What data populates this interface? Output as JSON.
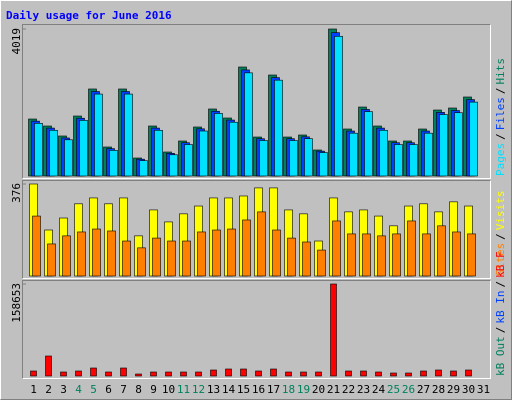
{
  "title": "Daily usage for June 2016",
  "categories": [
    "1",
    "2",
    "3",
    "4",
    "5",
    "6",
    "7",
    "8",
    "9",
    "10",
    "11",
    "12",
    "13",
    "14",
    "15",
    "16",
    "17",
    "18",
    "19",
    "20",
    "21",
    "22",
    "23",
    "24",
    "25",
    "26",
    "27",
    "28",
    "29",
    "30",
    "31"
  ],
  "category_colors": [
    "#000000",
    "#000000",
    "#000000",
    "#00805C",
    "#00805C",
    "#000000",
    "#000000",
    "#000000",
    "#000000",
    "#000000",
    "#00805C",
    "#00805C",
    "#000000",
    "#000000",
    "#000000",
    "#000000",
    "#000000",
    "#00805C",
    "#00805C",
    "#000000",
    "#000000",
    "#000000",
    "#000000",
    "#000000",
    "#00805C",
    "#00805C",
    "#000000",
    "#000000",
    "#000000",
    "#000000",
    "#000000"
  ],
  "legend_separator": "/",
  "chart_data": [
    {
      "type": "bar",
      "ylim": [
        0,
        4019
      ],
      "yticks": [
        4019
      ],
      "series": [
        {
          "name": "Hits",
          "color": "#00805C",
          "values": [
            1558,
            1367,
            1094,
            1640,
            2379,
            793,
            2379,
            492,
            1367,
            656,
            957,
            1340,
            1832,
            1586,
            2980,
            1066,
            2761,
            1066,
            1121,
            711,
            4019,
            1285,
            1886,
            1367,
            957,
            957,
            1285,
            1804,
            1859,
            2160,
            null
          ]
        },
        {
          "name": "Files",
          "color": "#0040FF",
          "values": [
            1500,
            1310,
            1040,
            1580,
            2310,
            750,
            2310,
            460,
            1310,
            620,
            910,
            1290,
            1770,
            1530,
            2900,
            1020,
            2690,
            1020,
            1070,
            680,
            3920,
            1230,
            1820,
            1310,
            910,
            910,
            1230,
            1740,
            1790,
            2090,
            null
          ]
        },
        {
          "name": "Pages",
          "color": "#00E0FF",
          "values": [
            1440,
            1250,
            990,
            1520,
            2240,
            700,
            2240,
            420,
            1250,
            580,
            860,
            1230,
            1710,
            1470,
            2820,
            970,
            2620,
            970,
            1020,
            640,
            3820,
            1170,
            1760,
            1250,
            860,
            860,
            1170,
            1680,
            1730,
            2020,
            null
          ]
        }
      ]
    },
    {
      "type": "bar",
      "ylim": [
        0,
        376
      ],
      "yticks": [
        376
      ],
      "series": [
        {
          "name": "Visits",
          "color": "#FFFF00",
          "values": [
            376,
            188,
            237,
            295,
            319,
            295,
            319,
            164,
            270,
            221,
            254,
            286,
            319,
            319,
            327,
            360,
            360,
            270,
            254,
            143,
            319,
            262,
            270,
            245,
            205,
            286,
            295,
            262,
            303,
            286,
            null
          ]
        },
        {
          "name": "Sites",
          "color": "#FF8000",
          "values": [
            245,
            131,
            164,
            180,
            192,
            184,
            143,
            115,
            155,
            143,
            143,
            180,
            188,
            192,
            229,
            262,
            188,
            155,
            139,
            106,
            225,
            172,
            172,
            164,
            172,
            225,
            172,
            205,
            180,
            172,
            null
          ]
        }
      ]
    },
    {
      "type": "bar",
      "ylim": [
        0,
        158653
      ],
      "yticks": [
        158653
      ],
      "series": [
        {
          "name": "kB F",
          "color": "#FF0000",
          "values": [
            8623,
            34490,
            6898,
            8623,
            13796,
            6898,
            13796,
            3449,
            6898,
            6898,
            6898,
            6898,
            10347,
            12072,
            12072,
            8623,
            12072,
            6898,
            6898,
            6898,
            158653,
            8623,
            8623,
            6898,
            5174,
            5174,
            8623,
            10347,
            8623,
            10347,
            null
          ]
        },
        {
          "name": "kB In",
          "color": "#0040FF"
        },
        {
          "name": "kB Out",
          "color": "#00805C"
        }
      ]
    }
  ]
}
